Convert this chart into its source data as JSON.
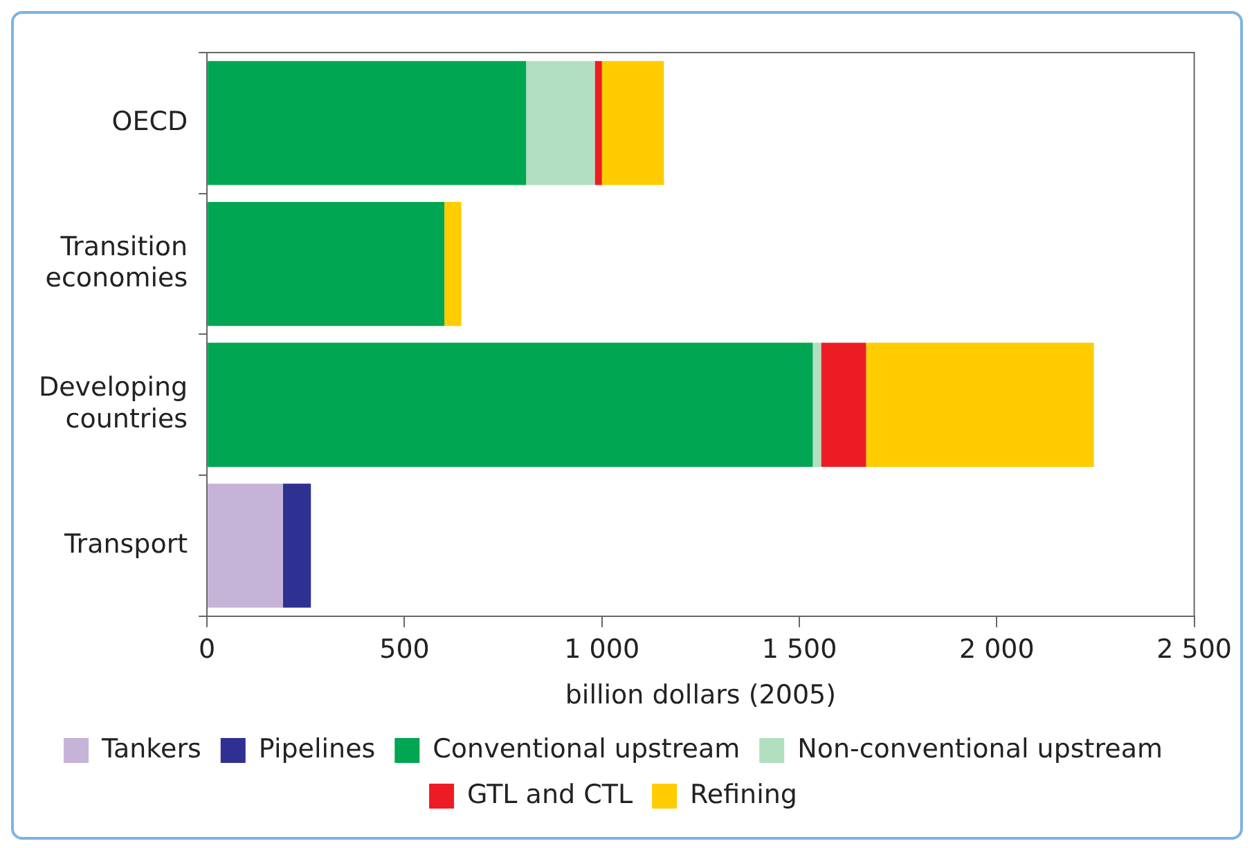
{
  "chart_data": {
    "type": "bar",
    "orientation": "horizontal",
    "stacked": true,
    "xlabel": "billion dollars (2005)",
    "categories": [
      "OECD",
      "Transition economies",
      "Developing countries",
      "Transport"
    ],
    "series": [
      {
        "name": "Tankers",
        "color": "#c6b3d8",
        "values": [
          0,
          0,
          0,
          192
        ]
      },
      {
        "name": "Pipelines",
        "color": "#2e3192",
        "values": [
          0,
          0,
          0,
          71
        ]
      },
      {
        "name": "Conventional upstream",
        "color": "#00a651",
        "values": [
          808,
          601,
          1534,
          0
        ]
      },
      {
        "name": "Non-conventional upstream",
        "color": "#b2dfc0",
        "values": [
          174,
          0,
          21,
          0
        ]
      },
      {
        "name": "GTL and CTL",
        "color": "#ed1c24",
        "values": [
          18,
          0,
          114,
          0
        ]
      },
      {
        "name": "Refining",
        "color": "#ffcc00",
        "values": [
          157,
          43,
          577,
          0
        ]
      }
    ],
    "xlim": [
      0,
      2500
    ],
    "xticks": [
      0,
      500,
      {
        "value": 1000,
        "label": "1 000"
      },
      {
        "value": 1500,
        "label": "1 500"
      },
      {
        "value": 2000,
        "label": "2 000"
      },
      {
        "value": 2500,
        "label": "2 500"
      }
    ],
    "grid": false,
    "legend": "bottom"
  }
}
